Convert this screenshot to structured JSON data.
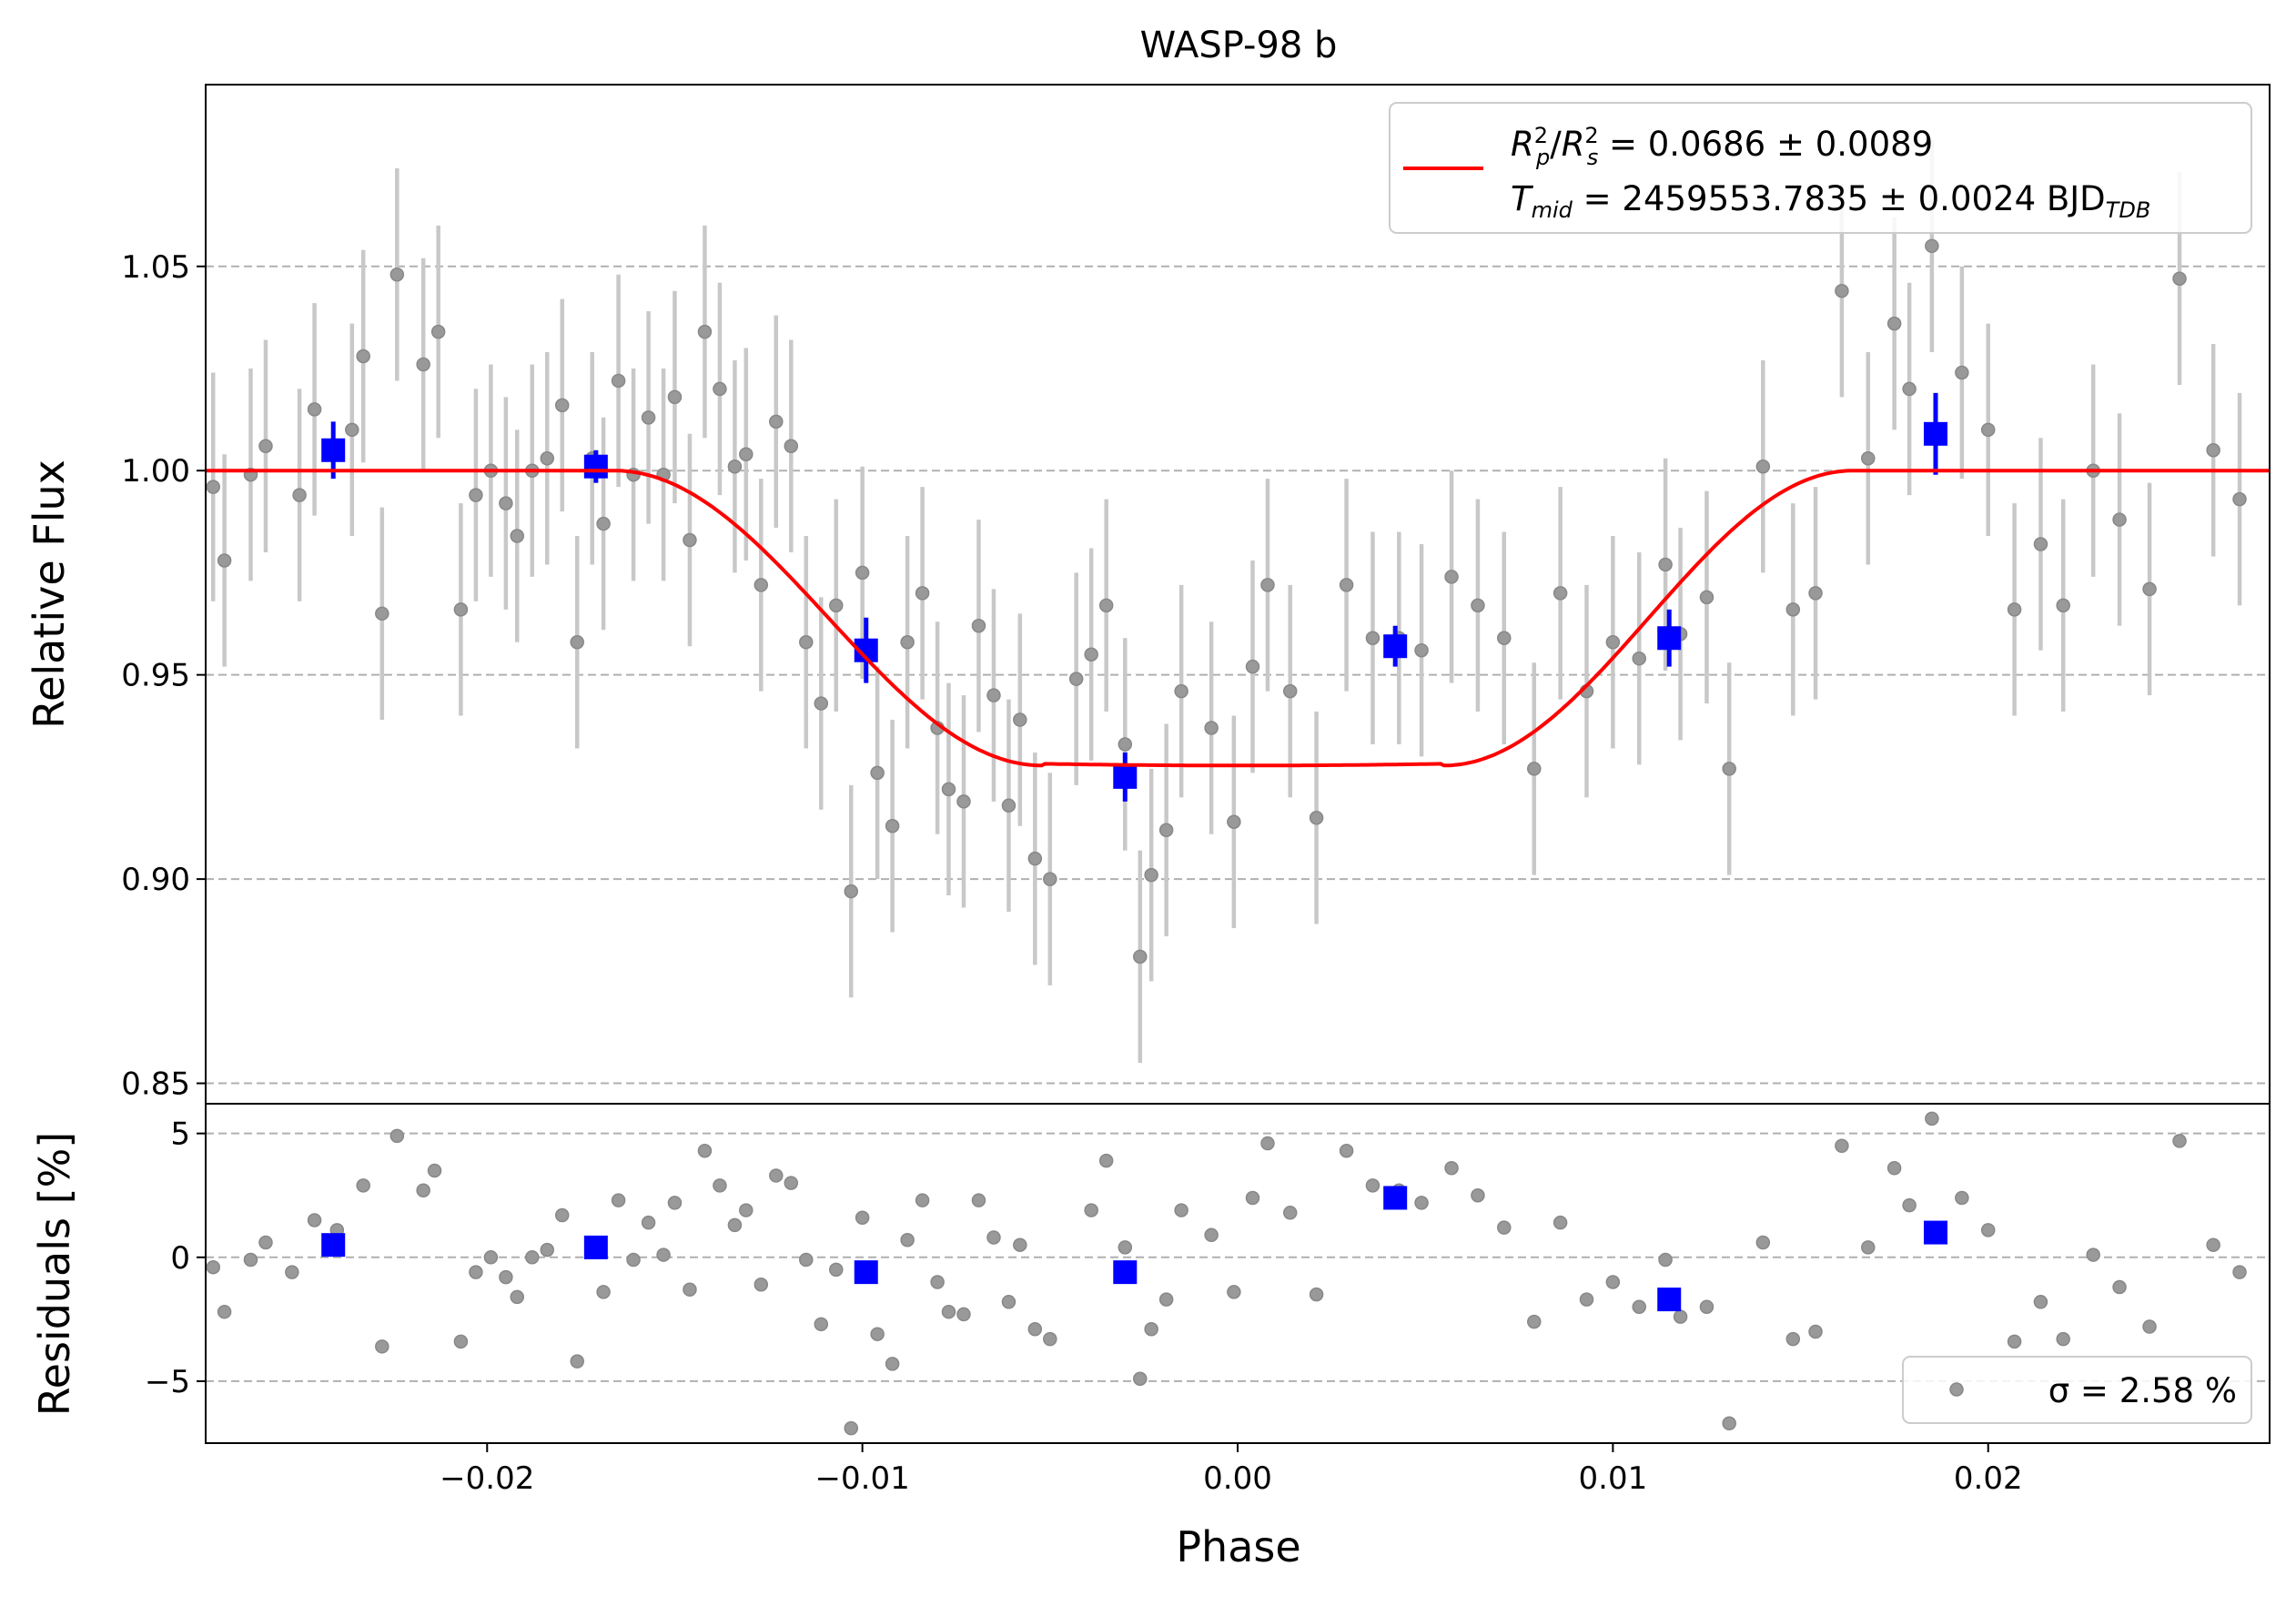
{
  "chart_data": [
    {
      "type": "scatter",
      "title": "WASP-98 b",
      "xlabel": "",
      "ylabel": "Relative Flux",
      "xlim": [
        -0.0275,
        0.0275
      ],
      "ylim": [
        0.845,
        1.0945
      ],
      "yticks": [
        0.85,
        0.9,
        0.95,
        1.0,
        1.05
      ],
      "ytick_labels": [
        "0.85",
        "0.90",
        "0.95",
        "1.00",
        "1.05"
      ],
      "grid": "horizontal dashed",
      "legend_position": "top-right",
      "legend_line1": "R²p/R²s = 0.0686 ± 0.0089",
      "legend_line2": "Tmid = 2459553.7835 ± 0.0024 BJDTDB",
      "colors": {
        "data": "#808080",
        "errorbar": "#c8c8c8",
        "binned": "#0000ff",
        "model": "#ff0000"
      },
      "series": [
        {
          "role": "unbinned data",
          "points": [
            [
              -0.0273,
              0.996,
              0.028
            ],
            [
              -0.027,
              0.978,
              0.026
            ],
            [
              -0.0263,
              0.999,
              0.026
            ],
            [
              -0.0259,
              1.006,
              0.026
            ],
            [
              -0.025,
              0.994,
              0.026
            ],
            [
              -0.0246,
              1.015,
              0.026
            ],
            [
              -0.0236,
              1.01,
              0.026
            ],
            [
              -0.0233,
              1.028,
              0.026
            ],
            [
              -0.0228,
              0.965,
              0.026
            ],
            [
              -0.0224,
              1.048,
              0.026
            ],
            [
              -0.0217,
              1.026,
              0.026
            ],
            [
              -0.0213,
              1.034,
              0.026
            ],
            [
              -0.0207,
              0.966,
              0.026
            ],
            [
              -0.0203,
              0.994,
              0.026
            ],
            [
              -0.0199,
              1.0,
              0.026
            ],
            [
              -0.0195,
              0.992,
              0.026
            ],
            [
              -0.0192,
              0.984,
              0.026
            ],
            [
              -0.0188,
              1.0,
              0.026
            ],
            [
              -0.0184,
              1.003,
              0.026
            ],
            [
              -0.018,
              1.016,
              0.026
            ],
            [
              -0.0176,
              0.958,
              0.026
            ],
            [
              -0.0172,
              1.003,
              0.026
            ],
            [
              -0.0169,
              0.987,
              0.026
            ],
            [
              -0.0165,
              1.022,
              0.026
            ],
            [
              -0.0161,
              0.999,
              0.026
            ],
            [
              -0.0157,
              1.013,
              0.026
            ],
            [
              -0.0153,
              0.999,
              0.026
            ],
            [
              -0.015,
              1.018,
              0.026
            ],
            [
              -0.0146,
              0.983,
              0.026
            ],
            [
              -0.0142,
              1.034,
              0.026
            ],
            [
              -0.0138,
              1.02,
              0.026
            ],
            [
              -0.0134,
              1.001,
              0.026
            ],
            [
              -0.0131,
              1.004,
              0.026
            ],
            [
              -0.0127,
              0.972,
              0.026
            ],
            [
              -0.0123,
              1.012,
              0.026
            ],
            [
              -0.0119,
              1.006,
              0.026
            ],
            [
              -0.0115,
              0.958,
              0.026
            ],
            [
              -0.0111,
              0.943,
              0.026
            ],
            [
              -0.0107,
              0.967,
              0.026
            ],
            [
              -0.0103,
              0.897,
              0.026
            ],
            [
              -0.01,
              0.975,
              0.026
            ],
            [
              -0.0096,
              0.926,
              0.026
            ],
            [
              -0.0092,
              0.913,
              0.026
            ],
            [
              -0.0088,
              0.958,
              0.026
            ],
            [
              -0.0084,
              0.97,
              0.026
            ],
            [
              -0.008,
              0.937,
              0.026
            ],
            [
              -0.0077,
              0.922,
              0.026
            ],
            [
              -0.0073,
              0.919,
              0.026
            ],
            [
              -0.0069,
              0.962,
              0.026
            ],
            [
              -0.0065,
              0.945,
              0.026
            ],
            [
              -0.0061,
              0.918,
              0.026
            ],
            [
              -0.0058,
              0.939,
              0.026
            ],
            [
              -0.0054,
              0.905,
              0.026
            ],
            [
              -0.005,
              0.9,
              0.026
            ],
            [
              -0.0043,
              0.949,
              0.026
            ],
            [
              -0.0039,
              0.955,
              0.026
            ],
            [
              -0.0035,
              0.967,
              0.026
            ],
            [
              -0.003,
              0.933,
              0.026
            ],
            [
              -0.0026,
              0.881,
              0.026
            ],
            [
              -0.0023,
              0.901,
              0.026
            ],
            [
              -0.0019,
              0.912,
              0.026
            ],
            [
              -0.0015,
              0.946,
              0.026
            ],
            [
              -0.0007,
              0.937,
              0.026
            ],
            [
              -0.0001,
              0.914,
              0.026
            ],
            [
              0.0004,
              0.952,
              0.026
            ],
            [
              0.0008,
              0.972,
              0.026
            ],
            [
              0.0014,
              0.946,
              0.026
            ],
            [
              0.0021,
              0.915,
              0.026
            ],
            [
              0.0029,
              0.972,
              0.026
            ],
            [
              0.0036,
              0.959,
              0.026
            ],
            [
              0.0043,
              0.959,
              0.026
            ],
            [
              0.0049,
              0.956,
              0.026
            ],
            [
              0.0057,
              0.974,
              0.026
            ],
            [
              0.0064,
              0.967,
              0.026
            ],
            [
              0.0071,
              0.959,
              0.026
            ],
            [
              0.0079,
              0.927,
              0.026
            ],
            [
              0.0086,
              0.97,
              0.026
            ],
            [
              0.0093,
              0.946,
              0.026
            ],
            [
              0.01,
              0.958,
              0.026
            ],
            [
              0.0107,
              0.954,
              0.026
            ],
            [
              0.0114,
              0.977,
              0.026
            ],
            [
              0.0118,
              0.96,
              0.026
            ],
            [
              0.0125,
              0.969,
              0.026
            ],
            [
              0.0131,
              0.927,
              0.026
            ],
            [
              0.014,
              1.001,
              0.026
            ],
            [
              0.0148,
              0.966,
              0.026
            ],
            [
              0.0154,
              0.97,
              0.026
            ],
            [
              0.0161,
              1.044,
              0.026
            ],
            [
              0.0168,
              1.003,
              0.026
            ],
            [
              0.0175,
              1.036,
              0.026
            ],
            [
              0.0179,
              1.02,
              0.026
            ],
            [
              0.0185,
              1.055,
              0.026
            ],
            [
              0.0193,
              1.024,
              0.026
            ],
            [
              0.02,
              1.01,
              0.026
            ],
            [
              0.0207,
              0.966,
              0.026
            ],
            [
              0.0214,
              0.982,
              0.026
            ],
            [
              0.022,
              0.967,
              0.026
            ],
            [
              0.0228,
              1.0,
              0.026
            ],
            [
              0.0235,
              0.988,
              0.026
            ],
            [
              0.0243,
              0.971,
              0.026
            ],
            [
              0.0251,
              1.047,
              0.026
            ],
            [
              0.026,
              1.005,
              0.026
            ],
            [
              0.0267,
              0.993,
              0.026
            ]
          ]
        },
        {
          "role": "binned data",
          "points": [
            [
              -0.0241,
              1.005,
              0.007
            ],
            [
              -0.0171,
              1.001,
              0.004
            ],
            [
              -0.0099,
              0.956,
              0.008
            ],
            [
              -0.003,
              0.925,
              0.006
            ],
            [
              0.0042,
              0.957,
              0.005
            ],
            [
              0.0115,
              0.959,
              0.007
            ],
            [
              0.0186,
              1.009,
              0.01
            ]
          ]
        },
        {
          "role": "transit model",
          "model": {
            "baseline": 1.0,
            "depth": 0.0722,
            "t1": -0.0166,
            "t2": -0.0052,
            "t3": 0.0055,
            "t4": 0.0164,
            "bottom_curvature": 0.006
          }
        }
      ]
    },
    {
      "type": "scatter",
      "title": "",
      "xlabel": "Phase",
      "ylabel": "Residuals [%]",
      "xlim": [
        -0.0275,
        0.0275
      ],
      "ylim": [
        -7.5,
        6.2
      ],
      "xticks": [
        -0.02,
        -0.01,
        0.0,
        0.01,
        0.02
      ],
      "xtick_labels": [
        "−0.02",
        "−0.01",
        "0.00",
        "0.01",
        "0.02"
      ],
      "yticks": [
        -5,
        0,
        5
      ],
      "ytick_labels": [
        "−5",
        "0",
        "5"
      ],
      "grid": "horizontal dashed",
      "legend_position": "bottom-right",
      "legend_text": "σ = 2.58 %",
      "series": [
        {
          "role": "residuals",
          "points": [
            [
              -0.0273,
              -0.4
            ],
            [
              -0.027,
              -2.2
            ],
            [
              -0.0263,
              -0.1
            ],
            [
              -0.0259,
              0.6
            ],
            [
              -0.0252,
              -0.6
            ],
            [
              -0.0246,
              1.5
            ],
            [
              -0.024,
              1.1
            ],
            [
              -0.0233,
              2.9
            ],
            [
              -0.0228,
              -3.6
            ],
            [
              -0.0224,
              4.9
            ],
            [
              -0.0217,
              2.7
            ],
            [
              -0.0214,
              3.5
            ],
            [
              -0.0207,
              -3.4
            ],
            [
              -0.0203,
              -0.6
            ],
            [
              -0.0199,
              0.0
            ],
            [
              -0.0195,
              -0.8
            ],
            [
              -0.0192,
              -1.6
            ],
            [
              -0.0188,
              0.0
            ],
            [
              -0.0184,
              0.3
            ],
            [
              -0.018,
              1.7
            ],
            [
              -0.0176,
              -4.2
            ],
            [
              -0.0172,
              0.4
            ],
            [
              -0.0169,
              -1.4
            ],
            [
              -0.0165,
              2.3
            ],
            [
              -0.0161,
              -0.1
            ],
            [
              -0.0157,
              1.4
            ],
            [
              -0.0153,
              0.1
            ],
            [
              -0.015,
              2.2
            ],
            [
              -0.0146,
              -1.3
            ],
            [
              -0.0142,
              4.3
            ],
            [
              -0.0138,
              2.9
            ],
            [
              -0.0134,
              1.3
            ],
            [
              -0.0131,
              1.9
            ],
            [
              -0.0127,
              -1.1
            ],
            [
              -0.0123,
              3.3
            ],
            [
              -0.0119,
              3.0
            ],
            [
              -0.0115,
              -0.1
            ],
            [
              -0.0111,
              -2.7
            ],
            [
              -0.0107,
              -0.5
            ],
            [
              -0.0103,
              -6.9
            ],
            [
              -0.01,
              1.6
            ],
            [
              -0.0096,
              -3.1
            ],
            [
              -0.0092,
              -4.3
            ],
            [
              -0.0088,
              0.7
            ],
            [
              -0.0084,
              2.3
            ],
            [
              -0.008,
              -1.0
            ],
            [
              -0.0077,
              -2.2
            ],
            [
              -0.0073,
              -2.3
            ],
            [
              -0.0069,
              2.3
            ],
            [
              -0.0065,
              0.8
            ],
            [
              -0.0061,
              -1.8
            ],
            [
              -0.0058,
              0.5
            ],
            [
              -0.0054,
              -2.9
            ],
            [
              -0.005,
              -3.3
            ],
            [
              -0.0035,
              3.9
            ],
            [
              -0.0039,
              1.9
            ],
            [
              -0.003,
              0.4
            ],
            [
              -0.0026,
              -4.9
            ],
            [
              -0.0023,
              -2.9
            ],
            [
              -0.0019,
              -1.7
            ],
            [
              -0.0015,
              1.9
            ],
            [
              -0.0007,
              0.9
            ],
            [
              -0.0001,
              -1.4
            ],
            [
              0.0004,
              2.4
            ],
            [
              0.0008,
              4.6
            ],
            [
              0.0014,
              1.8
            ],
            [
              0.0021,
              -1.5
            ],
            [
              0.0029,
              4.3
            ],
            [
              0.0036,
              2.9
            ],
            [
              0.0043,
              2.7
            ],
            [
              0.0049,
              2.2
            ],
            [
              0.0057,
              3.6
            ],
            [
              0.0064,
              2.5
            ],
            [
              0.0071,
              1.2
            ],
            [
              0.0079,
              -2.6
            ],
            [
              0.0086,
              1.4
            ],
            [
              0.0093,
              -1.7
            ],
            [
              0.01,
              -1.0
            ],
            [
              0.0107,
              -2.0
            ],
            [
              0.0114,
              -0.1
            ],
            [
              0.0118,
              -2.4
            ],
            [
              0.0125,
              -2.0
            ],
            [
              0.0131,
              -6.7
            ],
            [
              0.014,
              0.6
            ],
            [
              0.0148,
              -3.3
            ],
            [
              0.0154,
              -3.0
            ],
            [
              0.0161,
              4.5
            ],
            [
              0.0168,
              0.4
            ],
            [
              0.0175,
              3.6
            ],
            [
              0.0179,
              2.1
            ],
            [
              0.0185,
              5.6
            ],
            [
              0.0193,
              2.4
            ],
            [
              0.02,
              1.1
            ],
            [
              0.0207,
              -3.4
            ],
            [
              0.0214,
              -1.8
            ],
            [
              0.022,
              -3.3
            ],
            [
              0.0228,
              0.1
            ],
            [
              0.0235,
              -1.2
            ],
            [
              0.0243,
              -2.8
            ],
            [
              0.0251,
              4.7
            ],
            [
              0.026,
              0.5
            ],
            [
              0.0267,
              -0.6
            ]
          ]
        },
        {
          "role": "binned residuals",
          "points": [
            [
              -0.0241,
              0.5
            ],
            [
              -0.0171,
              0.4
            ],
            [
              -0.0099,
              -0.6
            ],
            [
              -0.003,
              -0.6
            ],
            [
              0.0042,
              2.4
            ],
            [
              0.0115,
              -1.7
            ],
            [
              0.0186,
              1.0
            ]
          ]
        }
      ]
    }
  ]
}
